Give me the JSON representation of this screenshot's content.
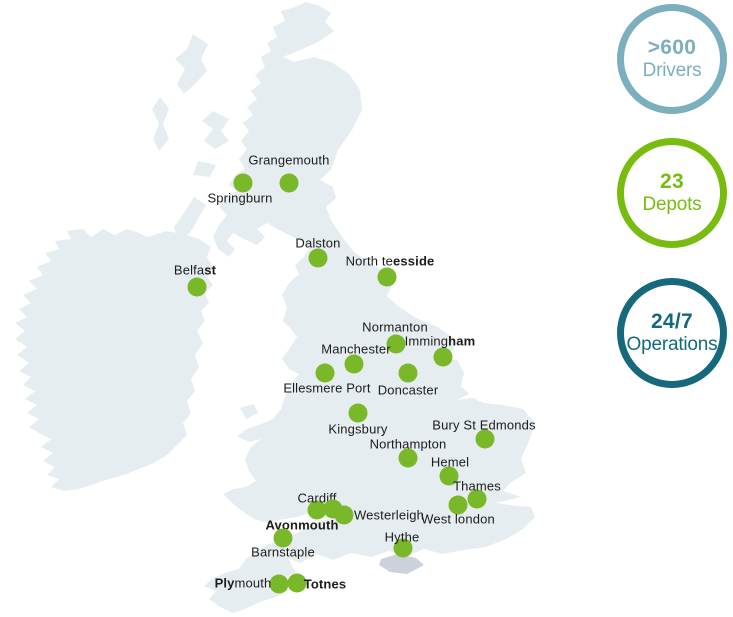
{
  "badges": [
    {
      "id": "drivers",
      "value": ">600",
      "label": "Drivers",
      "color": "#7cafbe"
    },
    {
      "id": "depots",
      "value": "23",
      "label": "Depots",
      "color": "#77bc0e"
    },
    {
      "id": "operations",
      "value": "24/7",
      "label": "Operations",
      "color": "#16697d"
    }
  ],
  "map": {
    "region": "United Kingdom and Ireland",
    "colors": {
      "land": "#e6edf0",
      "island_alt": "#cbd2dc",
      "dot": "#79b929",
      "label": "#1c1c1b"
    },
    "depots": [
      {
        "name": "Grangemouth",
        "dot": [
          289,
          183
        ],
        "label": [
          289,
          160
        ]
      },
      {
        "name": "Springburn",
        "dot": [
          243,
          183
        ],
        "label": [
          240,
          198
        ]
      },
      {
        "name": "Dalston",
        "dot": [
          318,
          258
        ],
        "label": [
          318,
          243
        ]
      },
      {
        "name": "North teesside",
        "dot": [
          387,
          277
        ],
        "label": [
          390,
          261
        ],
        "display": [
          {
            "t": "North te"
          },
          {
            "t": "esside",
            "b": true
          }
        ]
      },
      {
        "name": "Belfast",
        "dot": [
          197,
          287
        ],
        "label": [
          195,
          270
        ],
        "display": [
          {
            "t": "Belfa"
          },
          {
            "t": "st",
            "b": true
          }
        ]
      },
      {
        "name": "Normanton",
        "dot": [
          396,
          344
        ],
        "label": [
          395,
          327
        ]
      },
      {
        "name": "Immingham",
        "dot": [
          443,
          357
        ],
        "label": [
          440,
          341
        ],
        "display": [
          {
            "t": "Imming"
          },
          {
            "t": "ham",
            "b": true
          }
        ]
      },
      {
        "name": "Manchester",
        "dot": [
          354,
          364
        ],
        "label": [
          356,
          349
        ]
      },
      {
        "name": "Ellesmere Port",
        "dot": [
          325,
          373
        ],
        "label": [
          327,
          388
        ]
      },
      {
        "name": "Doncaster",
        "dot": [
          408,
          373
        ],
        "label": [
          408,
          390
        ]
      },
      {
        "name": "Kingsbury",
        "dot": [
          358,
          413
        ],
        "label": [
          358,
          429
        ]
      },
      {
        "name": "Bury St Edmonds",
        "dot": [
          485,
          439
        ],
        "label": [
          484,
          425
        ]
      },
      {
        "name": "Northampton",
        "dot": [
          408,
          458
        ],
        "label": [
          408,
          444
        ]
      },
      {
        "name": "Hemel",
        "dot": [
          449,
          476
        ],
        "label": [
          450,
          462
        ]
      },
      {
        "name": "Thames",
        "dot": [
          477,
          499
        ],
        "label": [
          477,
          486
        ]
      },
      {
        "name": "West london",
        "dot": [
          458,
          505
        ],
        "label": [
          458,
          519
        ]
      },
      {
        "name": "Cardiff",
        "dot": [
          317,
          510
        ],
        "label": [
          317,
          498
        ]
      },
      {
        "name": "Avonmouth",
        "dot": [
          333,
          509
        ],
        "label": [
          302,
          525
        ],
        "bold": true
      },
      {
        "name": "Westerleigh",
        "dot": [
          344,
          515
        ],
        "label": [
          389,
          515
        ]
      },
      {
        "name": "Barnstaple",
        "dot": [
          283,
          538
        ],
        "label": [
          283,
          552
        ]
      },
      {
        "name": "Hythe",
        "dot": [
          403,
          548
        ],
        "label": [
          402,
          537
        ]
      },
      {
        "name": "Plymouth",
        "dot": [
          279,
          584
        ],
        "label": [
          243,
          583
        ],
        "display": [
          {
            "t": "Ply",
            "b": true
          },
          {
            "t": "mouth"
          }
        ]
      },
      {
        "name": "Totnes",
        "dot": [
          297,
          583
        ],
        "label": [
          325,
          584
        ],
        "bold": true
      }
    ]
  }
}
